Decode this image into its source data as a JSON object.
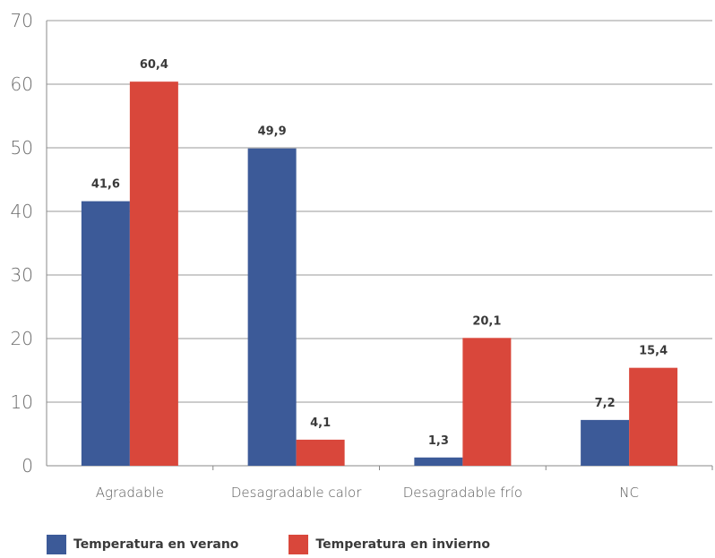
{
  "chart_data": {
    "type": "bar",
    "categories": [
      "Agradable",
      "Desagradable calor",
      "Desagradable frío",
      "NC"
    ],
    "series": [
      {
        "name": "Temperatura en verano",
        "values": [
          41.6,
          49.9,
          1.3,
          7.2
        ],
        "labels": [
          "41,6",
          "49,9",
          "1,3",
          "7,2"
        ],
        "color": "#3c5a98"
      },
      {
        "name": "Temperatura en invierno",
        "values": [
          60.4,
          4.1,
          20.1,
          15.4
        ],
        "labels": [
          "60,4",
          "4,1",
          "20,1",
          "15,4"
        ],
        "color": "#d9473b"
      }
    ],
    "yticks": [
      "0",
      "10",
      "20",
      "30",
      "40",
      "50",
      "60",
      "70"
    ],
    "ylim": [
      0,
      70
    ],
    "grid": true,
    "legend_position": "bottom-left",
    "title": "",
    "xlabel": "",
    "ylabel": ""
  },
  "legend": {
    "summer_label": "Temperatura en verano",
    "winter_label": "Temperatura en invierno"
  }
}
